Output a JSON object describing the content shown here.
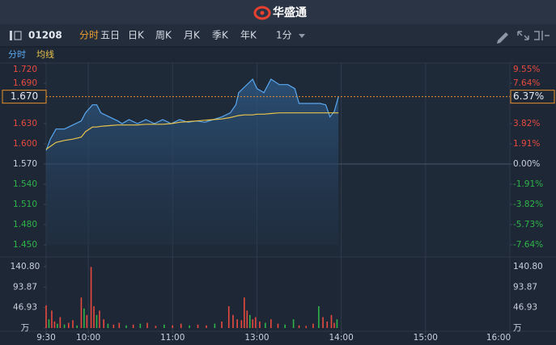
{
  "header": {
    "logo_text": "华盛通"
  },
  "toolbar": {
    "code": "01208",
    "tabs": [
      "分时",
      "五日",
      "日K",
      "周K",
      "月K",
      "季K",
      "年K"
    ],
    "interval": "1分"
  },
  "chart_data": [
    {
      "type": "line",
      "x": [
        0,
        3,
        7,
        13,
        19,
        25,
        28,
        33,
        36,
        39,
        45,
        51,
        54,
        59,
        65,
        71,
        77,
        83,
        89,
        95,
        101,
        107,
        113,
        119,
        125,
        131,
        135,
        137,
        141,
        147,
        150,
        155,
        160,
        166,
        172,
        177,
        180,
        191,
        195,
        199,
        202,
        205,
        208
      ],
      "series": [
        {
          "name": "分时",
          "color": "#5aa8f0",
          "values": [
            1.59,
            1.607,
            1.622,
            1.622,
            1.628,
            1.634,
            1.646,
            1.658,
            1.658,
            1.646,
            1.64,
            1.634,
            1.63,
            1.636,
            1.63,
            1.636,
            1.63,
            1.636,
            1.63,
            1.636,
            1.632,
            1.634,
            1.632,
            1.636,
            1.64,
            1.646,
            1.658,
            1.676,
            1.684,
            1.696,
            1.682,
            1.676,
            1.696,
            1.688,
            1.688,
            1.682,
            1.66,
            1.66,
            1.66,
            1.658,
            1.64,
            1.648,
            1.67
          ]
        },
        {
          "name": "均线",
          "color": "#e8c34a",
          "values": [
            1.592,
            1.596,
            1.602,
            1.605,
            1.607,
            1.61,
            1.618,
            1.625,
            1.625,
            1.626,
            1.627,
            1.628,
            1.628,
            1.628,
            1.628,
            1.629,
            1.629,
            1.629,
            1.63,
            1.632,
            1.633,
            1.634,
            1.635,
            1.636,
            1.637,
            1.639,
            1.641,
            1.642,
            1.643,
            1.643,
            1.644,
            1.644,
            1.645,
            1.646,
            1.646,
            1.646,
            1.646,
            1.646,
            1.646,
            1.646,
            1.646,
            1.646,
            1.646
          ]
        }
      ],
      "xlim": [
        0,
        330
      ],
      "xticks": [
        {
          "value": 0,
          "label": "9:30"
        },
        {
          "value": 30,
          "label": "10:00"
        },
        {
          "value": 90,
          "label": "11:00"
        },
        {
          "value": 150,
          "label": "13:00"
        },
        {
          "value": 210,
          "label": "14:00"
        },
        {
          "value": 270,
          "label": "15:00"
        },
        {
          "value": 330,
          "label": "16:00"
        }
      ],
      "ylim": [
        1.45,
        1.72
      ],
      "yticks": [
        {
          "value": 1.72,
          "label": "1.720"
        },
        {
          "value": 1.69,
          "label": "1.690"
        },
        {
          "value": 1.63,
          "label": "1.630"
        },
        {
          "value": 1.6,
          "label": "1.600"
        },
        {
          "value": 1.57,
          "label": "1.570"
        },
        {
          "value": 1.54,
          "label": "1.540"
        },
        {
          "value": 1.51,
          "label": "1.510"
        },
        {
          "value": 1.48,
          "label": "1.480"
        },
        {
          "value": 1.45,
          "label": "1.450"
        }
      ],
      "y2lim": [
        -7.64,
        9.55
      ],
      "y2ticks": [
        {
          "value": 9.55,
          "label": "9.55%"
        },
        {
          "value": 7.64,
          "label": "7.64%"
        },
        {
          "value": 3.82,
          "label": "3.82%"
        },
        {
          "value": 1.91,
          "label": "1.91%"
        },
        {
          "value": 0,
          "label": "0.00%"
        },
        {
          "value": -1.91,
          "label": "-1.91%"
        },
        {
          "value": -3.82,
          "label": "-3.82%"
        },
        {
          "value": -5.73,
          "label": "-5.73%"
        },
        {
          "value": -7.64,
          "label": "-7.64%"
        }
      ],
      "last_price": {
        "value": 1.67,
        "label": "1.670"
      },
      "last_change": {
        "value": 6.37,
        "label": "6.37%"
      },
      "up_color": "#e84a3f",
      "down_color": "#2fb44a"
    },
    {
      "type": "bar",
      "x": [
        0,
        2,
        4,
        6,
        8,
        10,
        13,
        16,
        19,
        22,
        25,
        27,
        29,
        32,
        34,
        36,
        38,
        41,
        44,
        48,
        52,
        57,
        62,
        67,
        72,
        78,
        84,
        90,
        96,
        102,
        108,
        114,
        120,
        125,
        130,
        133,
        136,
        139,
        141,
        143,
        145,
        147,
        149,
        152,
        156,
        160,
        165,
        170,
        176,
        180,
        185,
        190,
        194,
        197,
        200,
        203,
        205,
        207
      ],
      "values": [
        52,
        20,
        40,
        15,
        10,
        25,
        8,
        12,
        18,
        6,
        70,
        45,
        30,
        140,
        50,
        30,
        40,
        20,
        10,
        8,
        12,
        6,
        8,
        10,
        12,
        5,
        8,
        6,
        10,
        6,
        8,
        6,
        10,
        15,
        50,
        30,
        20,
        18,
        70,
        40,
        30,
        20,
        25,
        15,
        12,
        20,
        10,
        8,
        20,
        6,
        5,
        10,
        50,
        25,
        15,
        30,
        12,
        20
      ],
      "colors": [
        "#e84a3f",
        "#2fb44a",
        "#e84a3f",
        "#e84a3f",
        "#2fb44a",
        "#e84a3f",
        "#2fb44a",
        "#e84a3f",
        "#e84a3f",
        "#2fb44a",
        "#e84a3f",
        "#2fb44a",
        "#e84a3f",
        "#e84a3f",
        "#e84a3f",
        "#2fb44a",
        "#e84a3f",
        "#e84a3f",
        "#2fb44a",
        "#e84a3f",
        "#e84a3f",
        "#2fb44a",
        "#e84a3f",
        "#2fb44a",
        "#e84a3f",
        "#e84a3f",
        "#2fb44a",
        "#e84a3f",
        "#e84a3f",
        "#2fb44a",
        "#e84a3f",
        "#e84a3f",
        "#2fb44a",
        "#e84a3f",
        "#e84a3f",
        "#e84a3f",
        "#e84a3f",
        "#e84a3f",
        "#e84a3f",
        "#e84a3f",
        "#2fb44a",
        "#e84a3f",
        "#e84a3f",
        "#e84a3f",
        "#2fb44a",
        "#e84a3f",
        "#e84a3f",
        "#2fb44a",
        "#2fb44a",
        "#e84a3f",
        "#e84a3f",
        "#e84a3f",
        "#2fb44a",
        "#e84a3f",
        "#e84a3f",
        "#e84a3f",
        "#e84a3f",
        "#2fb44a"
      ],
      "xlim": [
        0,
        330
      ],
      "xticks": [
        {
          "value": 0,
          "label": "9:30"
        },
        {
          "value": 30,
          "label": "10:00"
        },
        {
          "value": 90,
          "label": "11:00"
        },
        {
          "value": 150,
          "label": "13:00"
        },
        {
          "value": 210,
          "label": "14:00"
        },
        {
          "value": 270,
          "label": "15:00"
        },
        {
          "value": 330,
          "label": "16:00"
        }
      ],
      "ylim": [
        0,
        140.8
      ],
      "yticks": [
        {
          "value": 140.8,
          "label": "140.80"
        },
        {
          "value": 93.87,
          "label": "93.87"
        },
        {
          "value": 46.93,
          "label": "46.93"
        },
        {
          "value": 0,
          "label": "万"
        }
      ]
    }
  ]
}
